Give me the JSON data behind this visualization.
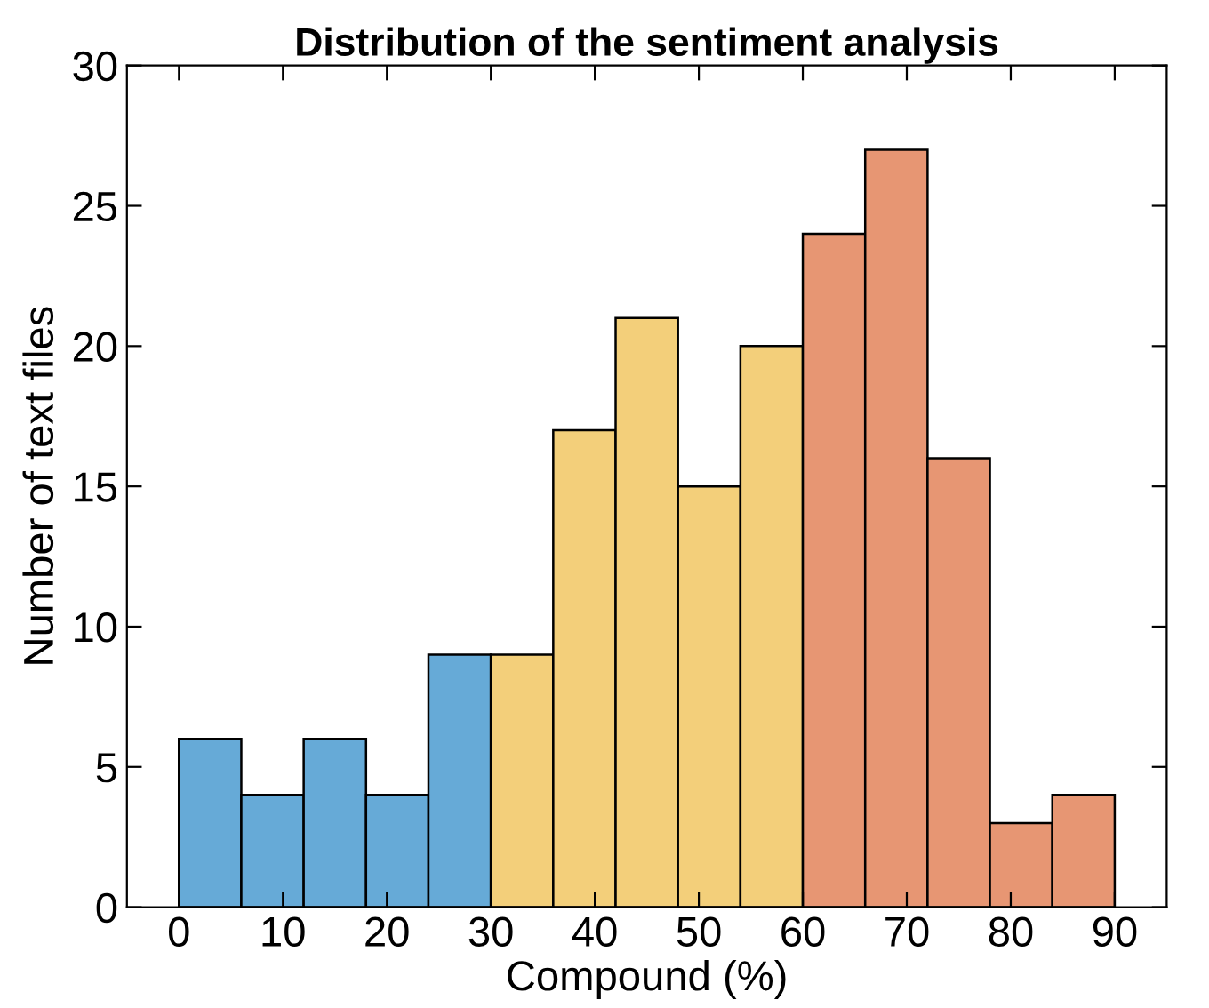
{
  "chart_data": {
    "type": "histogram",
    "title": "Distribution of the sentiment analysis",
    "xlabel": "Compound (%)",
    "ylabel": "Number of text files",
    "bins": [
      0,
      6,
      12,
      18,
      24,
      30,
      36,
      42,
      48,
      54,
      60,
      66,
      72,
      78,
      84,
      90
    ],
    "values": [
      6,
      4,
      6,
      4,
      9,
      9,
      17,
      21,
      15,
      20,
      24,
      27,
      16,
      3,
      4
    ],
    "colors": [
      "#66aad7",
      "#66aad7",
      "#66aad7",
      "#66aad7",
      "#66aad7",
      "#f3cf7a",
      "#f3cf7a",
      "#f3cf7a",
      "#f3cf7a",
      "#f3cf7a",
      "#e79673",
      "#e79673",
      "#e79673",
      "#e79673",
      "#e79673"
    ],
    "xlim": [
      -5,
      95
    ],
    "xticks": [
      0,
      10,
      20,
      30,
      40,
      50,
      60,
      70,
      80,
      90
    ],
    "ylim": [
      0,
      30
    ],
    "yticks": [
      0,
      5,
      10,
      15,
      20,
      25,
      30
    ],
    "grid": false
  }
}
